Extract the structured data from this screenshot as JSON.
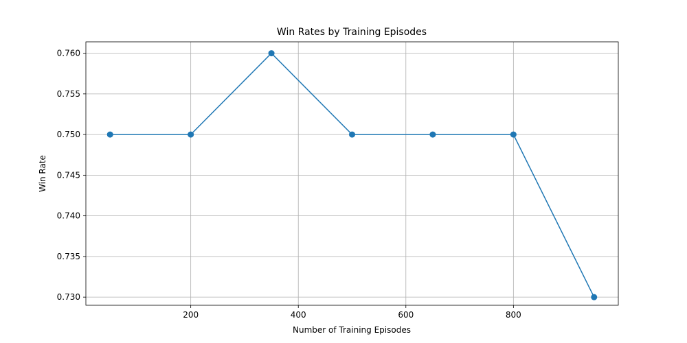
{
  "chart_data": {
    "type": "line",
    "title": "Win Rates by Training Episodes",
    "xlabel": "Number of Training Episodes",
    "ylabel": "Win Rate",
    "x": [
      50,
      200,
      350,
      500,
      650,
      800,
      950
    ],
    "series": [
      {
        "values": [
          0.75,
          0.75,
          0.76,
          0.75,
          0.75,
          0.75,
          0.73
        ]
      }
    ],
    "xlim": [
      5,
      995
    ],
    "ylim": [
      0.729,
      0.7614
    ],
    "xticks": [
      200,
      400,
      600,
      800
    ],
    "xtick_labels": [
      "200",
      "400",
      "600",
      "800"
    ],
    "yticks": [
      0.73,
      0.735,
      0.74,
      0.745,
      0.75,
      0.755,
      0.76
    ],
    "ytick_labels": [
      "0.730",
      "0.735",
      "0.740",
      "0.745",
      "0.750",
      "0.755",
      "0.760"
    ],
    "grid": true,
    "marker": "circle",
    "color": "#1f77b4"
  }
}
